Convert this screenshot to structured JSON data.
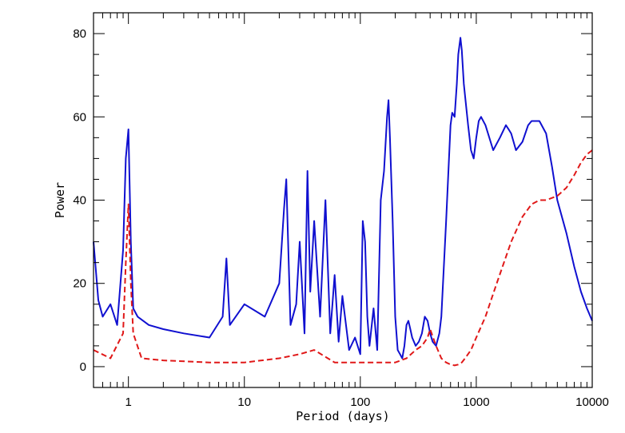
{
  "chart_data": {
    "type": "line",
    "title": "",
    "xlabel": "Period (days)",
    "ylabel": "Power",
    "x_scale": "log",
    "xlim": [
      0.5,
      10000
    ],
    "ylim": [
      -5,
      85
    ],
    "x_ticks": [
      1,
      10,
      100,
      1000,
      10000
    ],
    "x_tick_labels": [
      "1",
      "10",
      "100",
      "1000",
      "10000"
    ],
    "y_ticks": [
      0,
      20,
      40,
      60,
      80
    ],
    "y_tick_labels": [
      "0",
      "20",
      "40",
      "60",
      "80"
    ],
    "grid": false,
    "series": [
      {
        "style": "solid",
        "color": "#1010d0",
        "x": [
          0.5,
          0.55,
          0.6,
          0.7,
          0.8,
          0.9,
          0.95,
          1.0,
          1.05,
          1.1,
          1.2,
          1.5,
          2,
          3,
          5,
          6.5,
          7,
          7.5,
          10,
          15,
          20,
          22,
          23,
          25,
          28,
          30,
          33,
          35,
          37,
          40,
          45,
          50,
          55,
          60,
          65,
          70,
          80,
          90,
          100,
          105,
          110,
          115,
          120,
          130,
          140,
          150,
          160,
          170,
          175,
          180,
          185,
          190,
          200,
          210,
          220,
          230,
          240,
          250,
          260,
          270,
          280,
          300,
          320,
          340,
          360,
          380,
          400,
          420,
          450,
          480,
          500,
          550,
          600,
          620,
          650,
          680,
          700,
          730,
          750,
          780,
          800,
          850,
          900,
          950,
          1000,
          1050,
          1100,
          1200,
          1400,
          1600,
          1800,
          1900,
          2000,
          2200,
          2500,
          2800,
          3000,
          3500,
          4000,
          4500,
          5000,
          6000,
          7000,
          8000,
          9000,
          10000
        ],
        "y": [
          30,
          16,
          12,
          15,
          10,
          28,
          50,
          57,
          30,
          14,
          12,
          10,
          9,
          8,
          7,
          12,
          26,
          10,
          15,
          12,
          20,
          38,
          45,
          10,
          15,
          30,
          8,
          47,
          18,
          35,
          12,
          40,
          8,
          22,
          6,
          17,
          4,
          7,
          3,
          35,
          30,
          12,
          5,
          14,
          4,
          40,
          47,
          60,
          64,
          55,
          45,
          35,
          12,
          4,
          3,
          2,
          5,
          10,
          11,
          9,
          7,
          5,
          6,
          8,
          12,
          11,
          8,
          6,
          5,
          8,
          12,
          35,
          58,
          61,
          60,
          68,
          75,
          79,
          76,
          68,
          65,
          58,
          52,
          50,
          55,
          59,
          60,
          58,
          52,
          55,
          58,
          57,
          56,
          52,
          54,
          58,
          59,
          59,
          56,
          48,
          40,
          32,
          24,
          18,
          14,
          11
        ]
      },
      {
        "style": "dashed",
        "color": "#e01818",
        "x": [
          0.5,
          0.7,
          0.9,
          0.95,
          1.0,
          1.05,
          1.1,
          1.3,
          2,
          5,
          10,
          20,
          30,
          40,
          60,
          80,
          100,
          120,
          150,
          180,
          200,
          250,
          300,
          340,
          380,
          400,
          450,
          500,
          550,
          600,
          650,
          700,
          750,
          800,
          900,
          1000,
          1200,
          1500,
          2000,
          2500,
          3000,
          3500,
          4000,
          5000,
          6000,
          7000,
          8000,
          9000,
          10000
        ],
        "y": [
          4,
          2,
          8,
          25,
          39,
          20,
          8,
          2,
          1.5,
          1,
          1,
          2,
          3,
          4,
          1,
          1,
          1,
          1,
          1,
          1,
          1,
          2,
          4,
          5,
          7,
          9,
          5,
          2,
          1,
          0.5,
          0.3,
          0.5,
          1,
          2,
          4,
          7,
          12,
          20,
          30,
          36,
          39,
          40,
          40,
          41,
          43,
          46,
          49,
          51,
          52
        ]
      }
    ]
  }
}
